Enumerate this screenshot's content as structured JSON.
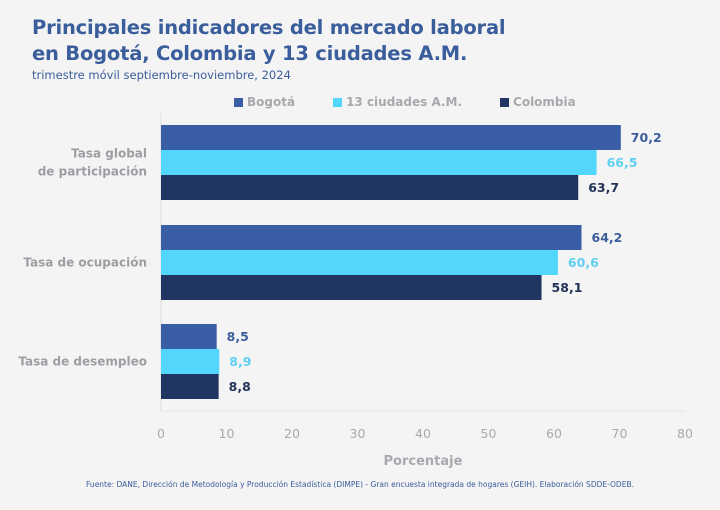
{
  "title_line1": "Principales indicadores del mercado laboral",
  "title_line2": "en Bogotá, Colombia y 13 ciudades A.M.",
  "subtitle": "trimestre móvil septiembre-noviembre, 2024",
  "footer": "Fuente: DANE, Dirección de Metodología y Producción Estadística (DIMPE) - Gran encuesta integrada de hogares (GEIH). Elaboración SDDE-ODEB.",
  "chart_data": {
    "type": "bar",
    "orientation": "horizontal",
    "title": "Principales indicadores del mercado laboral en Bogotá, Colombia y 13 ciudades A.M.",
    "subtitle": "trimestre móvil septiembre-noviembre, 2024",
    "categories": [
      "Tasa global de participación",
      "Tasa de ocupación",
      "Tasa de desempleo"
    ],
    "category_label_lines": [
      [
        "Tasa global",
        "de participación"
      ],
      [
        "Tasa de ocupación"
      ],
      [
        "Tasa de desempleo"
      ]
    ],
    "series": [
      {
        "name": "Bogotá",
        "color": "#3a5ea5",
        "label_color": "#3a5d9c",
        "values": [
          70.2,
          64.2,
          8.5
        ],
        "labels": [
          "70,2",
          "64,2",
          "8,5"
        ]
      },
      {
        "name": "13 ciudades A.M.",
        "color": "#52d6fb",
        "label_color": "#5fd0f2",
        "values": [
          66.5,
          60.6,
          8.9
        ],
        "labels": [
          "66,5",
          "60,6",
          "8,9"
        ]
      },
      {
        "name": "Colombia",
        "color": "#213562",
        "label_color": "#223358",
        "values": [
          63.7,
          58.1,
          8.8
        ],
        "labels": [
          "63,7",
          "58,1",
          "8,8"
        ]
      }
    ],
    "xlabel": "Porcentaje",
    "ylabel": "",
    "xlim": [
      0,
      80
    ],
    "xticks": [
      0,
      10,
      20,
      30,
      40,
      50,
      60,
      70,
      80
    ],
    "grid": false,
    "legend_position": "top"
  }
}
